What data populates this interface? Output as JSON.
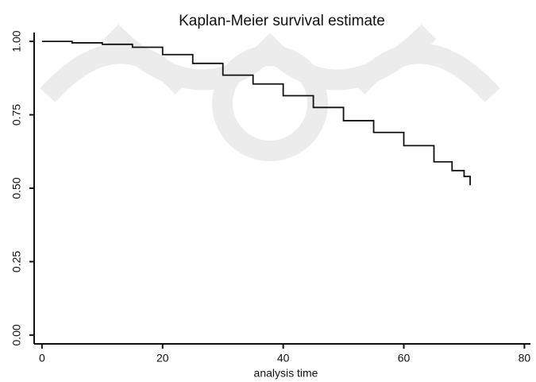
{
  "chart_data": {
    "type": "line",
    "step": true,
    "title": "Kaplan-Meier survival estimate",
    "x_label": "analysis time",
    "series": [
      {
        "color": "#111111",
        "x": [
          0,
          5,
          10,
          15,
          20,
          25,
          30,
          35,
          40,
          45,
          50,
          55,
          60,
          65,
          68,
          70,
          71
        ],
        "values": [
          1.0,
          0.995,
          0.99,
          0.98,
          0.955,
          0.925,
          0.885,
          0.855,
          0.815,
          0.775,
          0.73,
          0.69,
          0.645,
          0.59,
          0.56,
          0.54,
          0.51
        ]
      }
    ],
    "xlim": [
      -1.3,
      81
    ],
    "xticks": [
      0,
      20,
      40,
      60,
      80
    ],
    "ylim": [
      -0.03,
      1.03
    ],
    "yticks": [
      {
        "value": 0,
        "label": "0.00"
      },
      {
        "value": 0.25,
        "label": "0.25"
      },
      {
        "value": 0.5,
        "label": "0.50"
      },
      {
        "value": 0.75,
        "label": "0.75"
      },
      {
        "value": 1,
        "label": "1.00"
      }
    ],
    "grid": false
  }
}
